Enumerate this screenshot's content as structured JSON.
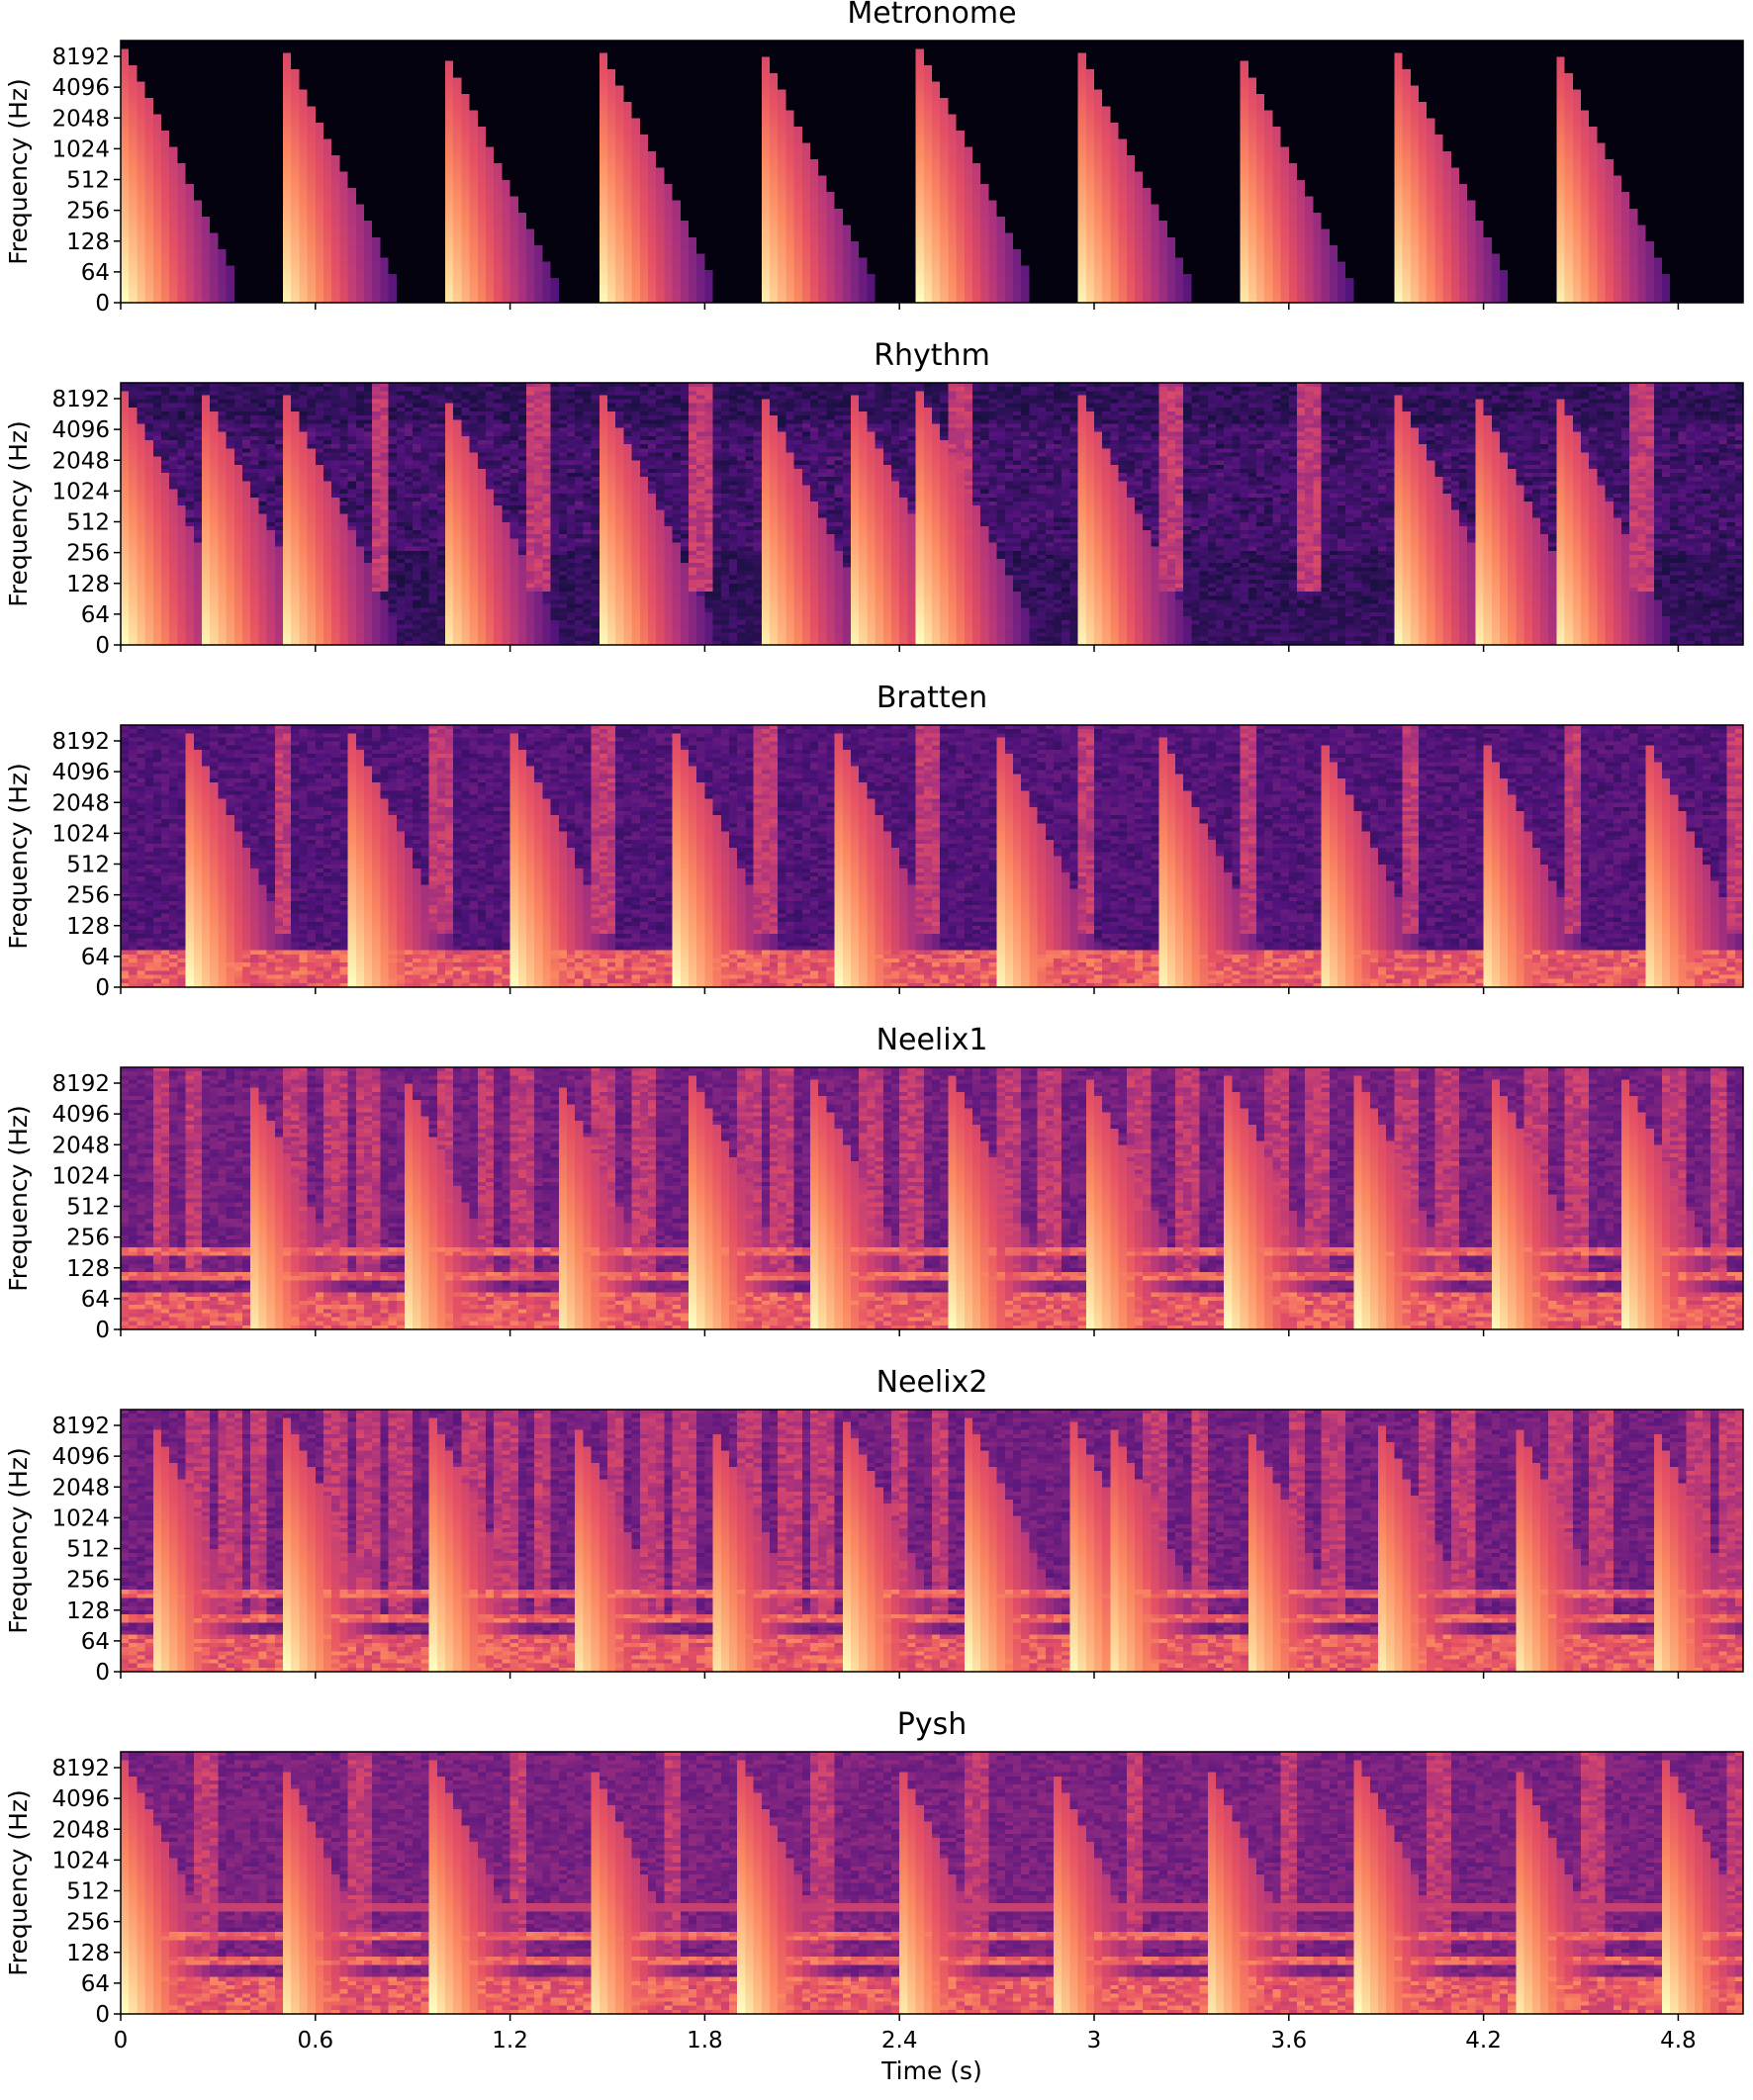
{
  "chart_data": [
    {
      "type": "heatmap",
      "title": "Metronome",
      "ylabel": "Frequency (Hz)",
      "yticks": [
        "0",
        "64",
        "128",
        "256",
        "512",
        "1024",
        "2048",
        "4096",
        "8192"
      ],
      "xlim": [
        0,
        5
      ],
      "onsets": [
        0,
        0.49,
        0.98,
        1.47,
        1.96,
        2.45,
        2.94,
        3.43,
        3.92,
        4.41
      ],
      "style": "click"
    },
    {
      "type": "heatmap",
      "title": "Rhythm",
      "ylabel": "Frequency (Hz)",
      "yticks": [
        "0",
        "64",
        "128",
        "256",
        "512",
        "1024",
        "2048",
        "4096",
        "8192"
      ],
      "xlim": [
        0,
        5
      ],
      "onsets": [
        0,
        0.24,
        0.49,
        0.98,
        1.47,
        1.96,
        2.24,
        2.45,
        2.94,
        3.92,
        4.16,
        4.41
      ],
      "minor_onsets": [
        0.76,
        1.25,
        1.74,
        2.55,
        3.2,
        3.62,
        4.65
      ],
      "style": "mixed"
    },
    {
      "type": "heatmap",
      "title": "Bratten",
      "ylabel": "Frequency (Hz)",
      "yticks": [
        "0",
        "64",
        "128",
        "256",
        "512",
        "1024",
        "2048",
        "4096",
        "8192"
      ],
      "xlim": [
        0,
        5
      ],
      "onsets": [
        0.2,
        0.7,
        1.2,
        1.7,
        2.2,
        2.69,
        3.19,
        3.68,
        4.18,
        4.68
      ],
      "minor_onsets": [
        0.45,
        0.95,
        1.45,
        1.95,
        2.45,
        2.94,
        3.44,
        3.93,
        4.43,
        4.93
      ],
      "style": "kick"
    },
    {
      "type": "heatmap",
      "title": "Neelix1",
      "ylabel": "Frequency (Hz)",
      "yticks": [
        "0",
        "64",
        "128",
        "256",
        "512",
        "1024",
        "2048",
        "4096",
        "8192"
      ],
      "xlim": [
        0,
        5
      ],
      "onsets": [
        0.38,
        0.86,
        1.33,
        1.75,
        2.12,
        2.55,
        2.97,
        3.4,
        3.8,
        4.22,
        4.62
      ],
      "minor_onsets": [
        0.08,
        0.18,
        0.5,
        0.62,
        0.72,
        0.96,
        1.08,
        1.2,
        1.45,
        1.57,
        1.9,
        2.0,
        2.27,
        2.4,
        2.7,
        2.82,
        3.1,
        3.25,
        3.52,
        3.65,
        3.92,
        4.05,
        4.32,
        4.45,
        4.75,
        4.88
      ],
      "style": "dense"
    },
    {
      "type": "heatmap",
      "title": "Neelix2",
      "ylabel": "Frequency (Hz)",
      "yticks": [
        "0",
        "64",
        "128",
        "256",
        "512",
        "1024",
        "2048",
        "4096",
        "8192"
      ],
      "xlim": [
        0,
        5
      ],
      "onsets": [
        0.08,
        0.5,
        0.95,
        1.38,
        1.8,
        2.22,
        2.6,
        2.92,
        3.03,
        3.45,
        3.86,
        4.28,
        4.7
      ],
      "minor_onsets": [
        0.2,
        0.3,
        0.38,
        0.62,
        0.72,
        0.82,
        1.05,
        1.15,
        1.26,
        1.48,
        1.6,
        1.7,
        1.9,
        2.02,
        2.12,
        2.35,
        2.48,
        3.15,
        3.28,
        3.58,
        3.7,
        3.98,
        4.1,
        4.4,
        4.52,
        4.82,
        4.92
      ],
      "style": "dense"
    },
    {
      "type": "heatmap",
      "title": "Pysh",
      "ylabel": "Frequency (Hz)",
      "yticks": [
        "0",
        "64",
        "128",
        "256",
        "512",
        "1024",
        "2048",
        "4096",
        "8192"
      ],
      "xlim": [
        0,
        5
      ],
      "onsets": [
        0.0,
        0.48,
        0.95,
        1.43,
        1.9,
        2.38,
        2.85,
        3.33,
        3.8,
        4.28,
        4.75
      ],
      "minor_onsets": [
        0.22,
        0.7,
        1.18,
        1.66,
        2.12,
        2.6,
        3.08,
        3.56,
        4.02,
        4.5,
        4.95
      ],
      "style": "tonal"
    }
  ],
  "xaxis": {
    "label": "Time (s)",
    "ticks": [
      "0",
      "0.6",
      "1.2",
      "1.8",
      "2.4",
      "3",
      "3.6",
      "4.2",
      "4.8"
    ]
  },
  "colors": {
    "background_dark": "#0d0829",
    "mid": "#7a2f8a",
    "hot": "#fcfdbf"
  }
}
